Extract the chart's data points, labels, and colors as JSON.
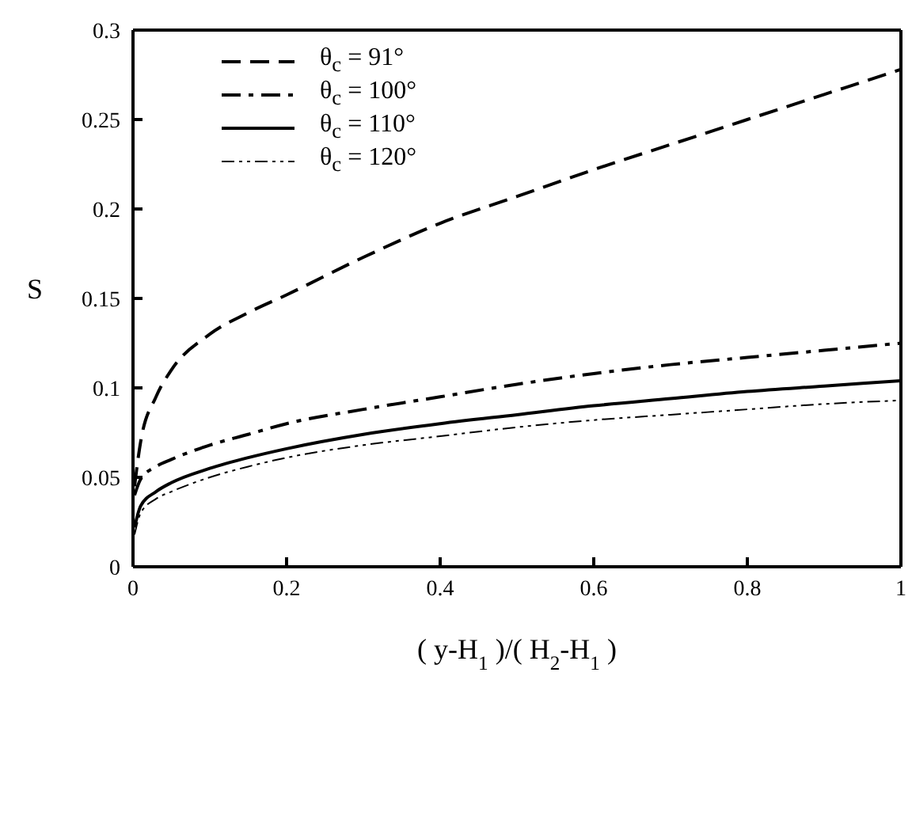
{
  "chart_data": {
    "type": "line",
    "xlabel": "( y-H$_{1}$ )/( H$_{2}$-H$_{1}$ )",
    "ylabel": "S",
    "xlim": [
      0,
      1
    ],
    "xticks": [
      0,
      0.2,
      0.4,
      0.6,
      0.8,
      1
    ],
    "ylim": [
      0,
      0.3
    ],
    "yticks": [
      0,
      0.05,
      0.1,
      0.15,
      0.2,
      0.25,
      0.3
    ],
    "grid": false,
    "legend": "top left",
    "marker": "none",
    "x": [
      0.002,
      0.01,
      0.03,
      0.05,
      0.1,
      0.15,
      0.2,
      0.3,
      0.4,
      0.5,
      0.6,
      0.7,
      0.8,
      0.9,
      1
    ],
    "series": [
      {
        "name": "θ$_{c}$ = 91°",
        "color": "#000000",
        "line_style": "dashed",
        "values": [
          0.045,
          0.07,
          0.095,
          0.11,
          0.13,
          0.142,
          0.152,
          0.173,
          0.192,
          0.207,
          0.222,
          0.236,
          0.25,
          0.264,
          0.278
        ]
      },
      {
        "name": "θ$_{c}$ = 100°",
        "color": "#000000",
        "line_style": "dashdot",
        "values": [
          0.04,
          0.049,
          0.056,
          0.06,
          0.068,
          0.074,
          0.08,
          0.088,
          0.095,
          0.102,
          0.108,
          0.113,
          0.117,
          0.121,
          0.125
        ]
      },
      {
        "name": "θ$_{c}$ = 110°",
        "color": "#000000",
        "line_style": "solid",
        "values": [
          0.022,
          0.034,
          0.042,
          0.047,
          0.055,
          0.061,
          0.066,
          0.074,
          0.08,
          0.085,
          0.09,
          0.094,
          0.098,
          0.101,
          0.104
        ]
      },
      {
        "name": "θ$_{c}$ = 120°",
        "color": "#000000",
        "line_style": "dashdotdot",
        "values": [
          0.018,
          0.03,
          0.038,
          0.042,
          0.05,
          0.056,
          0.061,
          0.068,
          0.073,
          0.078,
          0.082,
          0.085,
          0.088,
          0.091,
          0.093
        ]
      }
    ]
  }
}
